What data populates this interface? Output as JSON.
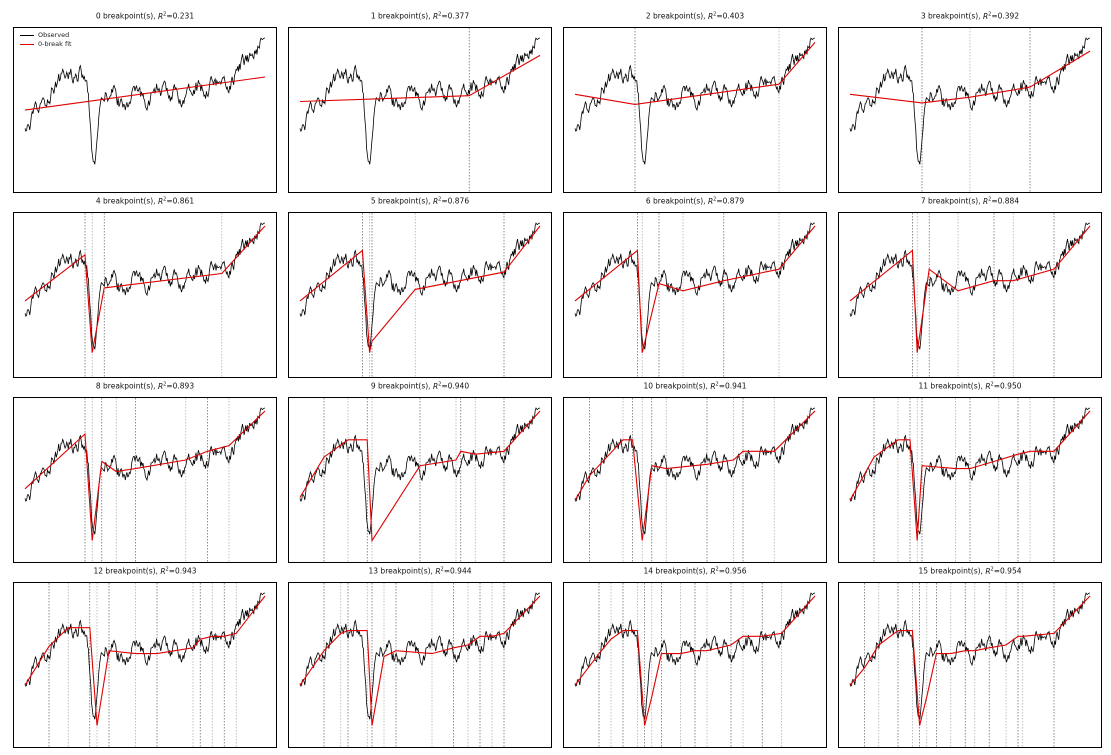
{
  "figure": {
    "legend": {
      "observed_label": "Observed",
      "fit_label": "0-break fit"
    },
    "colors": {
      "observed": "#000000",
      "fit": "#e00000",
      "break_line": "#444444"
    }
  },
  "chart_data": [
    {
      "type": "line",
      "breakpoints": 0,
      "title_prefix": "0 breakpoint(s), ",
      "r2_text": "=0.231",
      "break_positions": [],
      "fit_x": [
        0,
        1
      ],
      "fit_y": [
        0.52,
        0.75
      ]
    },
    {
      "type": "line",
      "breakpoints": 1,
      "title_prefix": "1 breakpoint(s), ",
      "r2_text": "=0.377",
      "break_positions": [
        0.705
      ],
      "fit_x": [
        0,
        0.705,
        1
      ],
      "fit_y": [
        0.58,
        0.62,
        0.9
      ]
    },
    {
      "type": "line",
      "breakpoints": 2,
      "title_prefix": "2 breakpoint(s), ",
      "r2_text": "=0.403",
      "break_positions": [
        0.25,
        0.85
      ],
      "fit_x": [
        0,
        0.25,
        0.85,
        1
      ],
      "fit_y": [
        0.63,
        0.56,
        0.7,
        0.99
      ]
    },
    {
      "type": "line",
      "breakpoints": 3,
      "title_prefix": "3 breakpoint(s), ",
      "r2_text": "=0.392",
      "break_positions": [
        0.3,
        0.5,
        0.75
      ],
      "fit_x": [
        0,
        0.3,
        0.5,
        0.75,
        1
      ],
      "fit_y": [
        0.63,
        0.57,
        0.61,
        0.68,
        0.93
      ]
    },
    {
      "type": "line",
      "breakpoints": 4,
      "title_prefix": "4 breakpoint(s), ",
      "r2_text": "=0.861",
      "break_positions": [
        0.25,
        0.28,
        0.33,
        0.82
      ],
      "fit_x": [
        0,
        0.25,
        0.28,
        0.33,
        0.82,
        1
      ],
      "fit_y": [
        0.48,
        0.8,
        0.12,
        0.57,
        0.67,
        1.0
      ]
    },
    {
      "type": "line",
      "breakpoints": 5,
      "title_prefix": "5 breakpoint(s), ",
      "r2_text": "=0.876",
      "break_positions": [
        0.26,
        0.29,
        0.3,
        0.48,
        0.85
      ],
      "fit_x": [
        0,
        0.26,
        0.29,
        0.3,
        0.48,
        0.85,
        1
      ],
      "fit_y": [
        0.48,
        0.83,
        0.12,
        0.2,
        0.56,
        0.68,
        1.0
      ]
    },
    {
      "type": "line",
      "breakpoints": 6,
      "title_prefix": "6 breakpoint(s), ",
      "r2_text": "=0.879",
      "break_positions": [
        0.26,
        0.28,
        0.35,
        0.45,
        0.62,
        0.85
      ],
      "fit_x": [
        0,
        0.26,
        0.28,
        0.35,
        0.45,
        0.62,
        0.85,
        1
      ],
      "fit_y": [
        0.48,
        0.83,
        0.12,
        0.6,
        0.55,
        0.62,
        0.7,
        1.0
      ]
    },
    {
      "type": "line",
      "breakpoints": 7,
      "title_prefix": "7 breakpoint(s), ",
      "r2_text": "=0.884",
      "break_positions": [
        0.26,
        0.28,
        0.33,
        0.45,
        0.6,
        0.68,
        0.85
      ],
      "fit_x": [
        0,
        0.26,
        0.28,
        0.33,
        0.45,
        0.6,
        0.68,
        0.85,
        1
      ],
      "fit_y": [
        0.48,
        0.83,
        0.12,
        0.7,
        0.55,
        0.62,
        0.62,
        0.7,
        1.0
      ]
    },
    {
      "type": "line",
      "breakpoints": 8,
      "title_prefix": "8 breakpoint(s), ",
      "r2_text": "=0.893",
      "break_positions": [
        0.25,
        0.28,
        0.32,
        0.38,
        0.46,
        0.67,
        0.76,
        0.85
      ],
      "fit_x": [
        0,
        0.25,
        0.28,
        0.32,
        0.38,
        0.46,
        0.67,
        0.76,
        0.85,
        1
      ],
      "fit_y": [
        0.46,
        0.84,
        0.1,
        0.65,
        0.58,
        0.6,
        0.66,
        0.72,
        0.76,
        1.0
      ]
    },
    {
      "type": "line",
      "breakpoints": 9,
      "title_prefix": "9 breakpoint(s), ",
      "r2_text": "=0.940",
      "break_positions": [
        0.1,
        0.2,
        0.28,
        0.3,
        0.5,
        0.65,
        0.67,
        0.73,
        0.85
      ],
      "fit_x": [
        0,
        0.1,
        0.2,
        0.28,
        0.3,
        0.5,
        0.65,
        0.67,
        0.73,
        0.85,
        1
      ],
      "fit_y": [
        0.4,
        0.68,
        0.8,
        0.8,
        0.1,
        0.62,
        0.66,
        0.72,
        0.7,
        0.72,
        1.0
      ]
    },
    {
      "type": "line",
      "breakpoints": 10,
      "title_prefix": "10 breakpoint(s), ",
      "r2_text": "=0.941",
      "break_positions": [
        0.06,
        0.2,
        0.24,
        0.28,
        0.32,
        0.38,
        0.55,
        0.66,
        0.7,
        0.83
      ],
      "fit_x": [
        0,
        0.06,
        0.2,
        0.24,
        0.28,
        0.32,
        0.38,
        0.55,
        0.66,
        0.7,
        0.83,
        1
      ],
      "fit_y": [
        0.38,
        0.55,
        0.8,
        0.8,
        0.1,
        0.62,
        0.6,
        0.63,
        0.66,
        0.72,
        0.72,
        1.0
      ]
    },
    {
      "type": "line",
      "breakpoints": 11,
      "title_prefix": "11 breakpoint(s), ",
      "r2_text": "=0.950",
      "break_positions": [
        0.1,
        0.2,
        0.25,
        0.28,
        0.3,
        0.44,
        0.5,
        0.62,
        0.7,
        0.75,
        0.85
      ],
      "fit_x": [
        0,
        0.1,
        0.2,
        0.25,
        0.28,
        0.3,
        0.44,
        0.5,
        0.62,
        0.7,
        0.75,
        0.85,
        1
      ],
      "fit_y": [
        0.38,
        0.68,
        0.8,
        0.8,
        0.1,
        0.62,
        0.6,
        0.6,
        0.66,
        0.7,
        0.72,
        0.72,
        1.0
      ]
    },
    {
      "type": "line",
      "breakpoints": 12,
      "title_prefix": "12 breakpoint(s), ",
      "r2_text": "=0.943",
      "break_positions": [
        0.1,
        0.18,
        0.27,
        0.3,
        0.35,
        0.46,
        0.55,
        0.7,
        0.73,
        0.78,
        0.83,
        0.88
      ],
      "fit_x": [
        0,
        0.1,
        0.18,
        0.27,
        0.3,
        0.35,
        0.46,
        0.55,
        0.7,
        0.73,
        0.78,
        0.83,
        0.88,
        1
      ],
      "fit_y": [
        0.38,
        0.65,
        0.78,
        0.78,
        0.1,
        0.62,
        0.6,
        0.6,
        0.64,
        0.7,
        0.72,
        0.72,
        0.74,
        1.0
      ]
    },
    {
      "type": "line",
      "breakpoints": 13,
      "title_prefix": "13 breakpoint(s), ",
      "r2_text": "=0.944",
      "break_positions": [
        0.1,
        0.17,
        0.2,
        0.28,
        0.3,
        0.35,
        0.4,
        0.55,
        0.64,
        0.7,
        0.75,
        0.8,
        0.85
      ],
      "fit_x": [
        0,
        0.1,
        0.17,
        0.2,
        0.28,
        0.3,
        0.35,
        0.4,
        0.55,
        0.64,
        0.7,
        0.75,
        0.8,
        0.85,
        1
      ],
      "fit_y": [
        0.38,
        0.62,
        0.74,
        0.76,
        0.76,
        0.1,
        0.58,
        0.62,
        0.6,
        0.64,
        0.66,
        0.72,
        0.72,
        0.74,
        1.0
      ]
    },
    {
      "type": "line",
      "breakpoints": 14,
      "title_prefix": "14 breakpoint(s), ",
      "r2_text": "=0.956",
      "break_positions": [
        0.1,
        0.15,
        0.2,
        0.26,
        0.29,
        0.32,
        0.36,
        0.44,
        0.5,
        0.55,
        0.65,
        0.7,
        0.78,
        0.86
      ],
      "fit_x": [
        0,
        0.1,
        0.15,
        0.2,
        0.26,
        0.29,
        0.32,
        0.36,
        0.44,
        0.5,
        0.55,
        0.65,
        0.7,
        0.78,
        0.86,
        1
      ],
      "fit_y": [
        0.38,
        0.6,
        0.7,
        0.76,
        0.76,
        0.1,
        0.3,
        0.6,
        0.6,
        0.62,
        0.62,
        0.66,
        0.72,
        0.72,
        0.74,
        1.0
      ]
    },
    {
      "type": "line",
      "breakpoints": 15,
      "title_prefix": "15 breakpoint(s), ",
      "r2_text": "=0.954",
      "break_positions": [
        0.06,
        0.12,
        0.2,
        0.26,
        0.29,
        0.32,
        0.36,
        0.42,
        0.48,
        0.52,
        0.58,
        0.65,
        0.7,
        0.72,
        0.85
      ],
      "fit_x": [
        0,
        0.06,
        0.12,
        0.2,
        0.26,
        0.29,
        0.32,
        0.36,
        0.42,
        0.48,
        0.52,
        0.58,
        0.65,
        0.7,
        0.72,
        0.85,
        1
      ],
      "fit_y": [
        0.38,
        0.5,
        0.66,
        0.76,
        0.76,
        0.1,
        0.3,
        0.6,
        0.6,
        0.62,
        0.62,
        0.64,
        0.66,
        0.72,
        0.72,
        0.74,
        1.0
      ]
    }
  ]
}
